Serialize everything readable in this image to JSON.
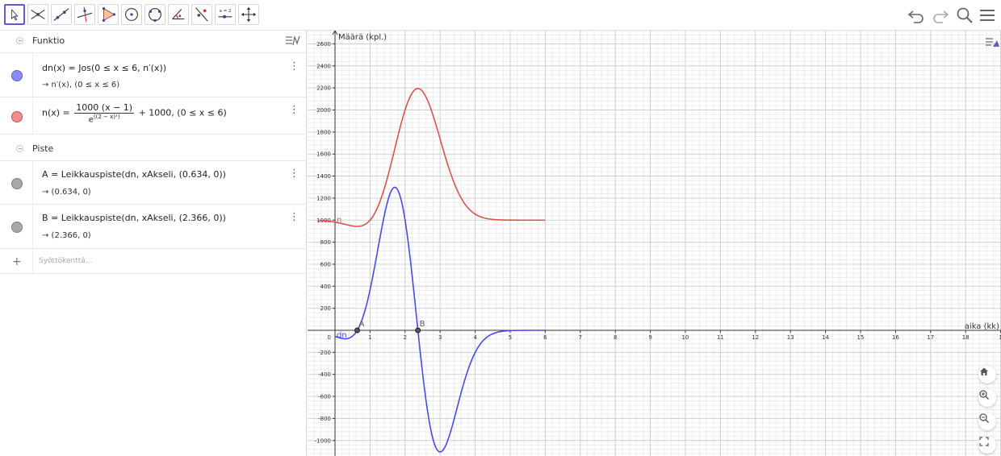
{
  "toolbar": {
    "tools": [
      "move-tool",
      "intersect-tool",
      "line-tool",
      "perpendicular-line-tool",
      "polygon-tool",
      "circle-center-point-tool",
      "circle-three-points-tool",
      "angle-tool",
      "reflect-tool",
      "slider-tool",
      "move-graphics-view-tool"
    ],
    "slider_label": "a = 2",
    "right_tools": [
      "undo-icon",
      "redo-icon",
      "search-icon",
      "menu-icon"
    ]
  },
  "algebra": {
    "groups": [
      {
        "label": "Funktio"
      },
      {
        "label": "Piste"
      }
    ],
    "items": [
      {
        "color": "#8a8aff",
        "border": "#5c5cd6",
        "def_pre": "dn(x)  =  Jos(0 ≤ x ≤ 6, n′(x))",
        "value": "→  n′(x),    (0 ≤ x ≤ 6)"
      },
      {
        "color": "#ef8c8c",
        "border": "#c75050",
        "def_pre": "n(x)  =",
        "num": "1000 (x − 1)",
        "den_base": "e",
        "den_exp": "((2 − x)²)",
        "def_post": "+ 1000,    (0 ≤ x ≤ 6)"
      },
      {
        "color": "#a8a8a8",
        "border": "#808080",
        "def_pre": "A  =  Leikkauspiste(dn, xAkseli, (0.634, 0))",
        "value": "→  (0.634, 0)"
      },
      {
        "color": "#a8a8a8",
        "border": "#808080",
        "def_pre": "B  =  Leikkauspiste(dn, xAkseli, (2.366, 0))",
        "value": "→  (2.366, 0)"
      }
    ],
    "input_placeholder": "Syöttökenttä..."
  },
  "graphics": {
    "y_axis_label": "Määrä (kpl.)",
    "x_axis_label": "aika (kk)",
    "x_ticks": [
      "0",
      "1",
      "2",
      "3",
      "4",
      "5",
      "6",
      "7",
      "8",
      "9",
      "10",
      "11",
      "12",
      "13",
      "14",
      "15",
      "16",
      "17",
      "18",
      "1"
    ],
    "y_ticks": [
      "2600",
      "2400",
      "2200",
      "2000",
      "1800",
      "1600",
      "1400",
      "1200",
      "1000",
      "800",
      "600",
      "400",
      "200",
      "-200",
      "-400",
      "-600",
      "-800",
      "-1000"
    ],
    "curve_labels": {
      "n": "n",
      "dn": "dn"
    },
    "points": [
      {
        "name": "A",
        "x": 0.634,
        "y": 0
      },
      {
        "name": "B",
        "x": 2.366,
        "y": 0
      }
    ],
    "colors": {
      "n": "#d9534f",
      "dn": "#4a4ae6",
      "grid_major": "#cfcfcf",
      "grid_minor": "#ececec"
    },
    "buttons": [
      "home-icon",
      "zoom-in-icon",
      "zoom-out-icon",
      "fullscreen-icon"
    ]
  }
}
